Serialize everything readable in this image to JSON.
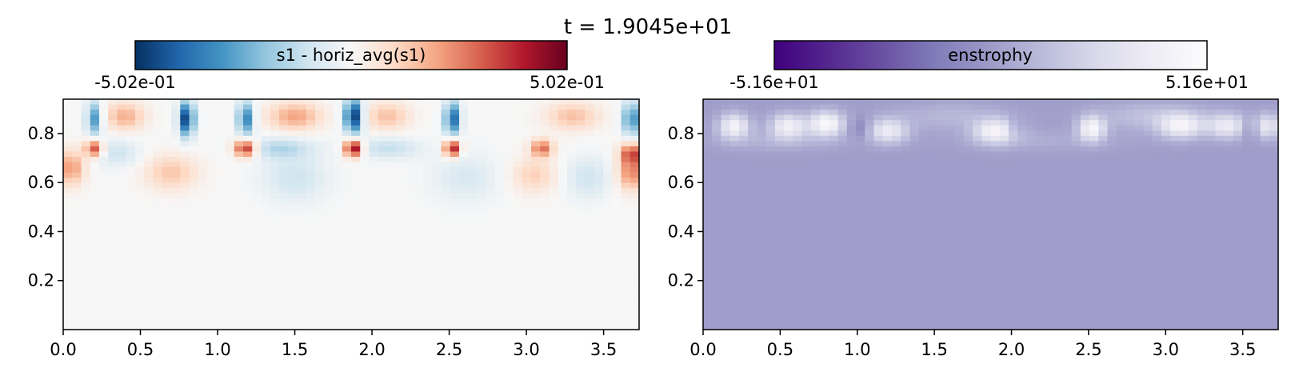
{
  "figure": {
    "title": "t = 1.9045e+01"
  },
  "chart_data": [
    {
      "type": "heatmap",
      "title": "",
      "colorbar": {
        "label": "s1 - horiz_avg(s1)",
        "min_label": "-5.02e-01",
        "max_label": "5.02e-01",
        "vmin": -0.502,
        "vmax": 0.502,
        "colormap": "RdBu_r",
        "stops": [
          "#053061",
          "#2166ac",
          "#4393c3",
          "#92c5de",
          "#d1e5f0",
          "#f7f7f7",
          "#fddbc7",
          "#f4a582",
          "#d6604d",
          "#b2182b",
          "#67001f"
        ]
      },
      "xlim": [
        0,
        3.73
      ],
      "ylim": [
        0,
        0.94
      ],
      "xticks": [
        "0.0",
        "0.5",
        "1.0",
        "1.5",
        "2.0",
        "2.5",
        "3.0",
        "3.5"
      ],
      "yticks": [
        "0.2",
        "0.4",
        "0.6",
        "0.8"
      ],
      "background_value": 0.0,
      "features": [
        {
          "x": 0.2,
          "y": 0.86,
          "value": -0.3,
          "sx": 0.035,
          "sy": 0.05
        },
        {
          "x": 0.8,
          "y": 0.86,
          "value": -0.48,
          "sx": 0.035,
          "sy": 0.05
        },
        {
          "x": 1.18,
          "y": 0.86,
          "value": -0.35,
          "sx": 0.035,
          "sy": 0.05
        },
        {
          "x": 1.88,
          "y": 0.87,
          "value": -0.5,
          "sx": 0.04,
          "sy": 0.05
        },
        {
          "x": 2.52,
          "y": 0.86,
          "value": -0.4,
          "sx": 0.035,
          "sy": 0.05
        },
        {
          "x": 3.68,
          "y": 0.86,
          "value": -0.32,
          "sx": 0.04,
          "sy": 0.05
        },
        {
          "x": 0.4,
          "y": 0.87,
          "value": 0.18,
          "sx": 0.09,
          "sy": 0.04
        },
        {
          "x": 1.5,
          "y": 0.87,
          "value": 0.2,
          "sx": 0.12,
          "sy": 0.04
        },
        {
          "x": 2.1,
          "y": 0.87,
          "value": 0.15,
          "sx": 0.1,
          "sy": 0.04
        },
        {
          "x": 3.3,
          "y": 0.87,
          "value": 0.15,
          "sx": 0.12,
          "sy": 0.04
        },
        {
          "x": 0.2,
          "y": 0.74,
          "value": 0.35,
          "sx": 0.04,
          "sy": 0.025
        },
        {
          "x": 1.18,
          "y": 0.74,
          "value": 0.42,
          "sx": 0.05,
          "sy": 0.025
        },
        {
          "x": 1.88,
          "y": 0.74,
          "value": 0.5,
          "sx": 0.04,
          "sy": 0.025
        },
        {
          "x": 2.52,
          "y": 0.74,
          "value": 0.45,
          "sx": 0.035,
          "sy": 0.025
        },
        {
          "x": 3.1,
          "y": 0.74,
          "value": 0.28,
          "sx": 0.05,
          "sy": 0.025
        },
        {
          "x": 3.68,
          "y": 0.72,
          "value": 0.3,
          "sx": 0.05,
          "sy": 0.03
        },
        {
          "x": 0.05,
          "y": 0.66,
          "value": 0.22,
          "sx": 0.06,
          "sy": 0.05
        },
        {
          "x": 3.68,
          "y": 0.64,
          "value": 0.25,
          "sx": 0.06,
          "sy": 0.05
        },
        {
          "x": 0.7,
          "y": 0.64,
          "value": 0.14,
          "sx": 0.12,
          "sy": 0.05
        },
        {
          "x": 3.05,
          "y": 0.63,
          "value": 0.12,
          "sx": 0.1,
          "sy": 0.05
        },
        {
          "x": 1.4,
          "y": 0.74,
          "value": -0.14,
          "sx": 0.15,
          "sy": 0.03
        },
        {
          "x": 2.1,
          "y": 0.74,
          "value": -0.12,
          "sx": 0.15,
          "sy": 0.03
        },
        {
          "x": 1.5,
          "y": 0.62,
          "value": -0.1,
          "sx": 0.15,
          "sy": 0.07
        },
        {
          "x": 2.6,
          "y": 0.62,
          "value": -0.08,
          "sx": 0.15,
          "sy": 0.07
        },
        {
          "x": 3.4,
          "y": 0.62,
          "value": -0.1,
          "sx": 0.1,
          "sy": 0.06
        },
        {
          "x": 0.35,
          "y": 0.72,
          "value": -0.1,
          "sx": 0.1,
          "sy": 0.04
        }
      ]
    },
    {
      "type": "heatmap",
      "title": "",
      "colorbar": {
        "label": "enstrophy",
        "min_label": "-5.16e+01",
        "max_label": "5.16e+01",
        "vmin": -51.6,
        "vmax": 51.6,
        "colormap": "Purples_r",
        "stops": [
          "#3f007d",
          "#54278f",
          "#6a51a3",
          "#807dba",
          "#9e9ac8",
          "#bcbddc",
          "#dadaeb",
          "#efedf5",
          "#fcfbfd"
        ]
      },
      "xlim": [
        0,
        3.73
      ],
      "ylim": [
        0,
        0.94
      ],
      "xticks": [
        "0.0",
        "0.5",
        "1.0",
        "1.5",
        "2.0",
        "2.5",
        "3.0",
        "3.5"
      ],
      "yticks": [
        "0.2",
        "0.4",
        "0.6",
        "0.8"
      ],
      "background_value": 1.0,
      "features": [
        {
          "x": 0.2,
          "y": 0.83,
          "value": 42,
          "sx": 0.07,
          "sy": 0.035
        },
        {
          "x": 0.55,
          "y": 0.83,
          "value": 40,
          "sx": 0.08,
          "sy": 0.035
        },
        {
          "x": 0.8,
          "y": 0.84,
          "value": 48,
          "sx": 0.08,
          "sy": 0.035
        },
        {
          "x": 1.2,
          "y": 0.81,
          "value": 36,
          "sx": 0.09,
          "sy": 0.035
        },
        {
          "x": 1.9,
          "y": 0.81,
          "value": 42,
          "sx": 0.1,
          "sy": 0.035
        },
        {
          "x": 2.52,
          "y": 0.82,
          "value": 44,
          "sx": 0.06,
          "sy": 0.035
        },
        {
          "x": 3.1,
          "y": 0.83,
          "value": 40,
          "sx": 0.1,
          "sy": 0.035
        },
        {
          "x": 3.4,
          "y": 0.83,
          "value": 36,
          "sx": 0.09,
          "sy": 0.035
        },
        {
          "x": 3.66,
          "y": 0.83,
          "value": 34,
          "sx": 0.06,
          "sy": 0.035
        },
        {
          "x": 1.6,
          "y": 0.87,
          "value": 10,
          "sx": 0.25,
          "sy": 0.04
        },
        {
          "x": 2.9,
          "y": 0.87,
          "value": 14,
          "sx": 0.25,
          "sy": 0.04
        },
        {
          "x": 0.5,
          "y": 0.77,
          "value": 8,
          "sx": 0.3,
          "sy": 0.03
        },
        {
          "x": 2.2,
          "y": 0.77,
          "value": 6,
          "sx": 0.4,
          "sy": 0.03
        },
        {
          "x": 1.02,
          "y": 0.82,
          "value": -12,
          "sx": 0.05,
          "sy": 0.03
        },
        {
          "x": 2.02,
          "y": 0.82,
          "value": -10,
          "sx": 0.04,
          "sy": 0.03
        },
        {
          "x": 3.55,
          "y": 0.82,
          "value": -12,
          "sx": 0.04,
          "sy": 0.03
        }
      ]
    }
  ]
}
